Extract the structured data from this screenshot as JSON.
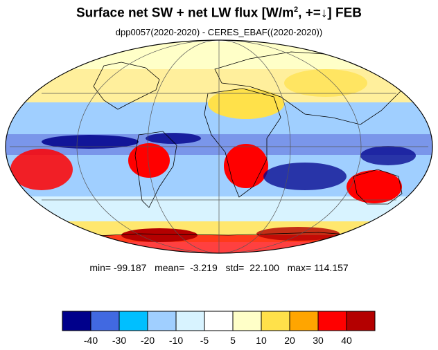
{
  "title": {
    "main": "Surface net SW + net LW flux  [W/m",
    "sup": "2",
    "rest": ", +=↓]  FEB"
  },
  "subtitle": "dpp0057(2020-2020) - CERES_EBAF((2020-2020))",
  "stats": {
    "min_label": "min=",
    "min": "-99.187",
    "mean_label": "mean=",
    "mean": "-3.219",
    "std_label": "std=",
    "std": "22.100",
    "max_label": "max=",
    "max": "114.157"
  },
  "colorbar": {
    "colors": [
      "#00008b",
      "#4169e1",
      "#00bfff",
      "#a0cfff",
      "#d8f3ff",
      "#ffffff",
      "#ffffc8",
      "#ffe14a",
      "#ffa500",
      "#ff0000",
      "#b40000"
    ],
    "labels": [
      "-40",
      "-30",
      "-20",
      "-10",
      "-5",
      "5",
      "10",
      "20",
      "30",
      "40"
    ]
  },
  "map": {
    "projection": "mollweide",
    "background_color": "#ffffff"
  }
}
